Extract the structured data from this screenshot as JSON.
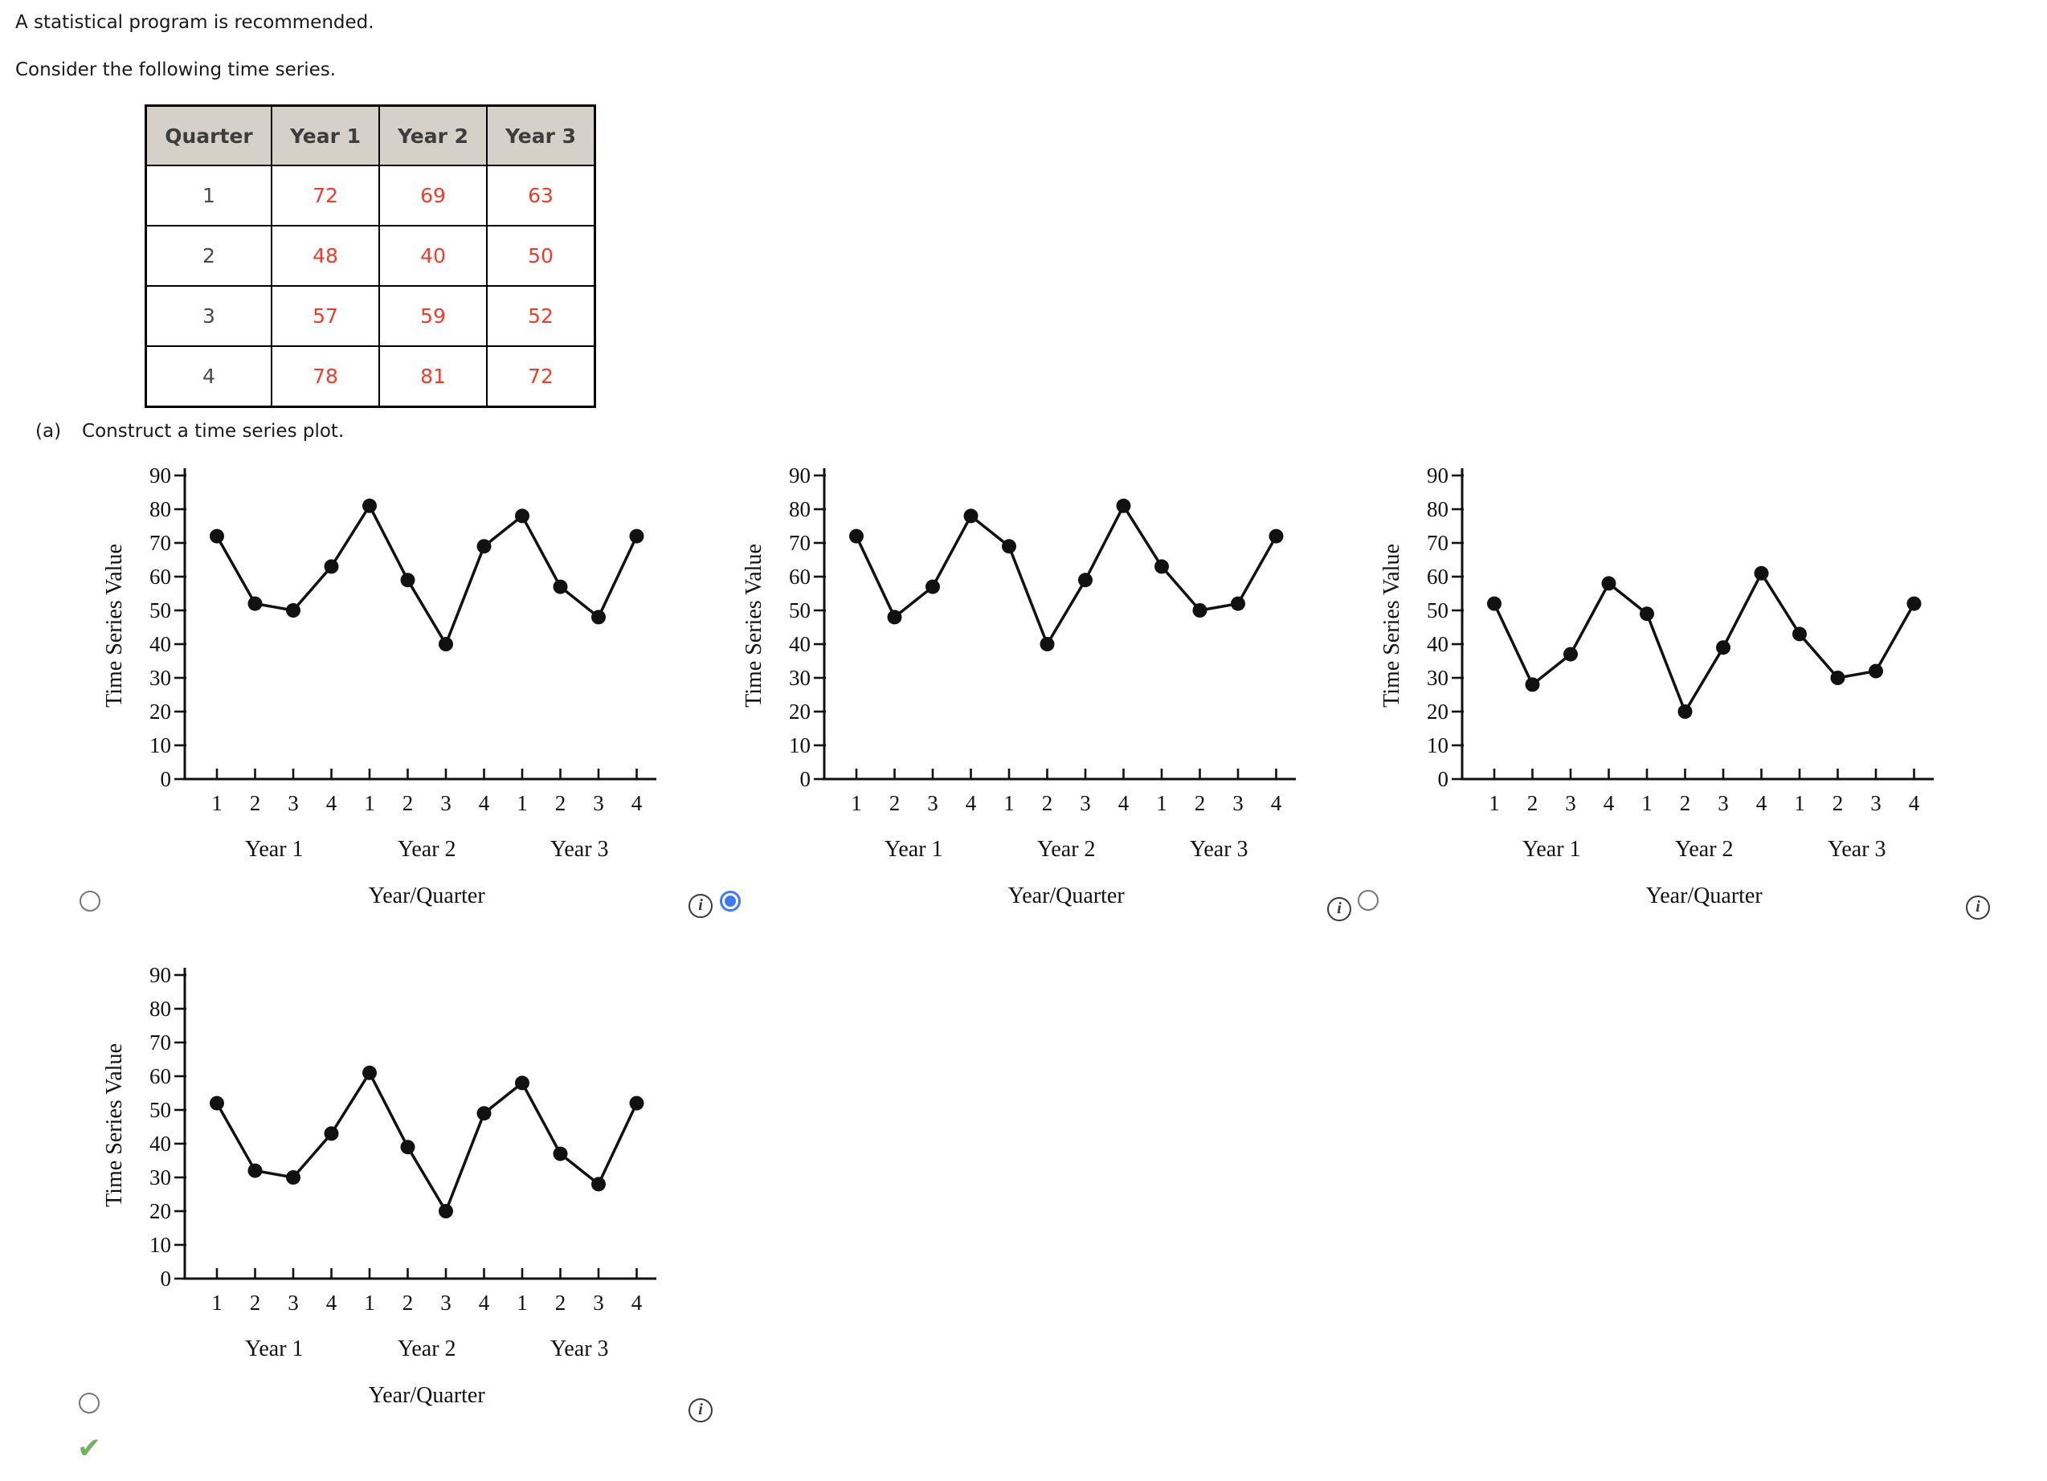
{
  "page": {
    "intro_line1": "A statistical program is recommended.",
    "intro_line2": "Consider the following time series.",
    "part_label": "(a)",
    "part_prompt": "Construct a time series plot."
  },
  "table": {
    "headers": [
      "Quarter",
      "Year 1",
      "Year 2",
      "Year 3"
    ],
    "rows": [
      [
        "1",
        "72",
        "69",
        "63"
      ],
      [
        "2",
        "48",
        "40",
        "50"
      ],
      [
        "3",
        "57",
        "59",
        "52"
      ],
      [
        "4",
        "78",
        "81",
        "72"
      ]
    ],
    "header_bg": "#d5d0c8",
    "value_color": "#ee3d2c"
  },
  "chart_data": [
    {
      "type": "line",
      "option": "option-1",
      "values": [
        72,
        52,
        50,
        63,
        81,
        59,
        40,
        69,
        78,
        57,
        48,
        72
      ],
      "x_tick_labels": [
        "1",
        "2",
        "3",
        "4",
        "1",
        "2",
        "3",
        "4",
        "1",
        "2",
        "3",
        "4"
      ],
      "year_labels": [
        "Year 1",
        "Year 2",
        "Year 3"
      ],
      "xlabel": "Year/Quarter",
      "ylabel": "Time Series Value",
      "yticks": [
        0,
        10,
        20,
        30,
        40,
        50,
        60,
        70,
        80,
        90
      ],
      "ylim": [
        0,
        90
      ],
      "selected": false
    },
    {
      "type": "line",
      "option": "option-2",
      "values": [
        72,
        48,
        57,
        78,
        69,
        40,
        59,
        81,
        63,
        50,
        52,
        72
      ],
      "x_tick_labels": [
        "1",
        "2",
        "3",
        "4",
        "1",
        "2",
        "3",
        "4",
        "1",
        "2",
        "3",
        "4"
      ],
      "year_labels": [
        "Year 1",
        "Year 2",
        "Year 3"
      ],
      "xlabel": "Year/Quarter",
      "ylabel": "Time Series Value",
      "yticks": [
        0,
        10,
        20,
        30,
        40,
        50,
        60,
        70,
        80,
        90
      ],
      "ylim": [
        0,
        90
      ],
      "selected": true
    },
    {
      "type": "line",
      "option": "option-3",
      "values": [
        52,
        28,
        37,
        58,
        49,
        20,
        39,
        61,
        43,
        30,
        32,
        52
      ],
      "x_tick_labels": [
        "1",
        "2",
        "3",
        "4",
        "1",
        "2",
        "3",
        "4",
        "1",
        "2",
        "3",
        "4"
      ],
      "year_labels": [
        "Year 1",
        "Year 2",
        "Year 3"
      ],
      "xlabel": "Year/Quarter",
      "ylabel": "Time Series Value",
      "yticks": [
        0,
        10,
        20,
        30,
        40,
        50,
        60,
        70,
        80,
        90
      ],
      "ylim": [
        0,
        90
      ],
      "selected": false
    },
    {
      "type": "line",
      "option": "option-4",
      "values": [
        52,
        32,
        30,
        43,
        61,
        39,
        20,
        49,
        58,
        37,
        28,
        52
      ],
      "x_tick_labels": [
        "1",
        "2",
        "3",
        "4",
        "1",
        "2",
        "3",
        "4",
        "1",
        "2",
        "3",
        "4"
      ],
      "year_labels": [
        "Year 1",
        "Year 2",
        "Year 3"
      ],
      "xlabel": "Year/Quarter",
      "ylabel": "Time Series Value",
      "yticks": [
        0,
        10,
        20,
        30,
        40,
        50,
        60,
        70,
        80,
        90
      ],
      "ylim": [
        0,
        90
      ],
      "selected": false
    }
  ],
  "controls": {
    "info_glyph": "i",
    "check_glyph": "✔",
    "accent_blue": "#3d7bf5",
    "check_green": "#74b25e"
  }
}
